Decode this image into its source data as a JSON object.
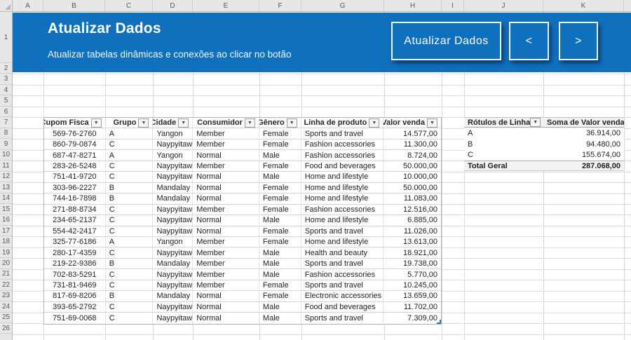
{
  "colors": {
    "accent_blue": "#0F70BE"
  },
  "icons": {
    "filter": "▼"
  },
  "grid": {
    "columns": [
      "A",
      "B",
      "C",
      "D",
      "E",
      "F",
      "G",
      "H",
      "I",
      "J",
      "K"
    ],
    "rows": [
      "1",
      "2",
      "3",
      "4",
      "5",
      "6",
      "7",
      "8",
      "9",
      "10",
      "11",
      "12",
      "13",
      "14",
      "15",
      "16",
      "17",
      "18",
      "19",
      "20",
      "21",
      "22",
      "23",
      "24",
      "25",
      "26"
    ]
  },
  "banner": {
    "title": "Atualizar Dados",
    "subtitle": "Atualizar tabelas dinâmicas e conexões ao clicar no botão",
    "refresh_button": "Atualizar Dados",
    "prev_button": "<",
    "next_button": ">"
  },
  "data_table": {
    "headers": [
      "Cupom Fisca",
      "Grupo",
      "Cidade",
      "Consumidor",
      "Gênero",
      "Linha de produto",
      "Valor venda"
    ],
    "rows": [
      [
        "569-76-2760",
        "A",
        "Yangon",
        "Member",
        "Female",
        "Sports and travel",
        "14.577,00"
      ],
      [
        "860-79-0874",
        "C",
        "Naypyitaw",
        "Member",
        "Female",
        "Fashion accessories",
        "11.300,00"
      ],
      [
        "687-47-8271",
        "A",
        "Yangon",
        "Normal",
        "Male",
        "Fashion accessories",
        "8.724,00"
      ],
      [
        "283-26-5248",
        "C",
        "Naypyitaw",
        "Member",
        "Female",
        "Food and beverages",
        "50.000,00"
      ],
      [
        "751-41-9720",
        "C",
        "Naypyitaw",
        "Normal",
        "Male",
        "Home and lifestyle",
        "10.000,00"
      ],
      [
        "303-96-2227",
        "B",
        "Mandalay",
        "Normal",
        "Female",
        "Home and lifestyle",
        "50.000,00"
      ],
      [
        "744-16-7898",
        "B",
        "Mandalay",
        "Normal",
        "Female",
        "Home and lifestyle",
        "11.083,00"
      ],
      [
        "271-88-8734",
        "C",
        "Naypyitaw",
        "Member",
        "Female",
        "Fashion accessories",
        "12.516,00"
      ],
      [
        "234-65-2137",
        "C",
        "Naypyitaw",
        "Normal",
        "Male",
        "Home and lifestyle",
        "6.885,00"
      ],
      [
        "554-42-2417",
        "C",
        "Naypyitaw",
        "Normal",
        "Female",
        "Sports and travel",
        "11.026,00"
      ],
      [
        "325-77-6186",
        "A",
        "Yangon",
        "Member",
        "Female",
        "Home and lifestyle",
        "13.613,00"
      ],
      [
        "280-17-4359",
        "C",
        "Naypyitaw",
        "Member",
        "Male",
        "Health and beauty",
        "18.921,00"
      ],
      [
        "219-22-9386",
        "B",
        "Mandalay",
        "Member",
        "Male",
        "Sports and travel",
        "19.738,00"
      ],
      [
        "702-83-5291",
        "C",
        "Naypyitaw",
        "Member",
        "Male",
        "Fashion accessories",
        "5.770,00"
      ],
      [
        "731-81-9469",
        "C",
        "Naypyitaw",
        "Member",
        "Female",
        "Sports and travel",
        "10.245,00"
      ],
      [
        "817-69-8206",
        "B",
        "Mandalay",
        "Normal",
        "Female",
        "Electronic accessories",
        "13.659,00"
      ],
      [
        "393-65-2792",
        "C",
        "Naypyitaw",
        "Normal",
        "Male",
        "Food and beverages",
        "11.702,00"
      ],
      [
        "751-69-0068",
        "C",
        "Naypyitaw",
        "Normal",
        "Male",
        "Sports and travel",
        "7.309,00"
      ]
    ]
  },
  "pivot_table": {
    "headers": [
      "Rótulos de Linha",
      "Soma de Valor vendas"
    ],
    "rows": [
      [
        "A",
        "36.914,00"
      ],
      [
        "B",
        "94.480,00"
      ],
      [
        "C",
        "155.674,00"
      ]
    ],
    "total": [
      "Total Geral",
      "287.068,00"
    ]
  }
}
